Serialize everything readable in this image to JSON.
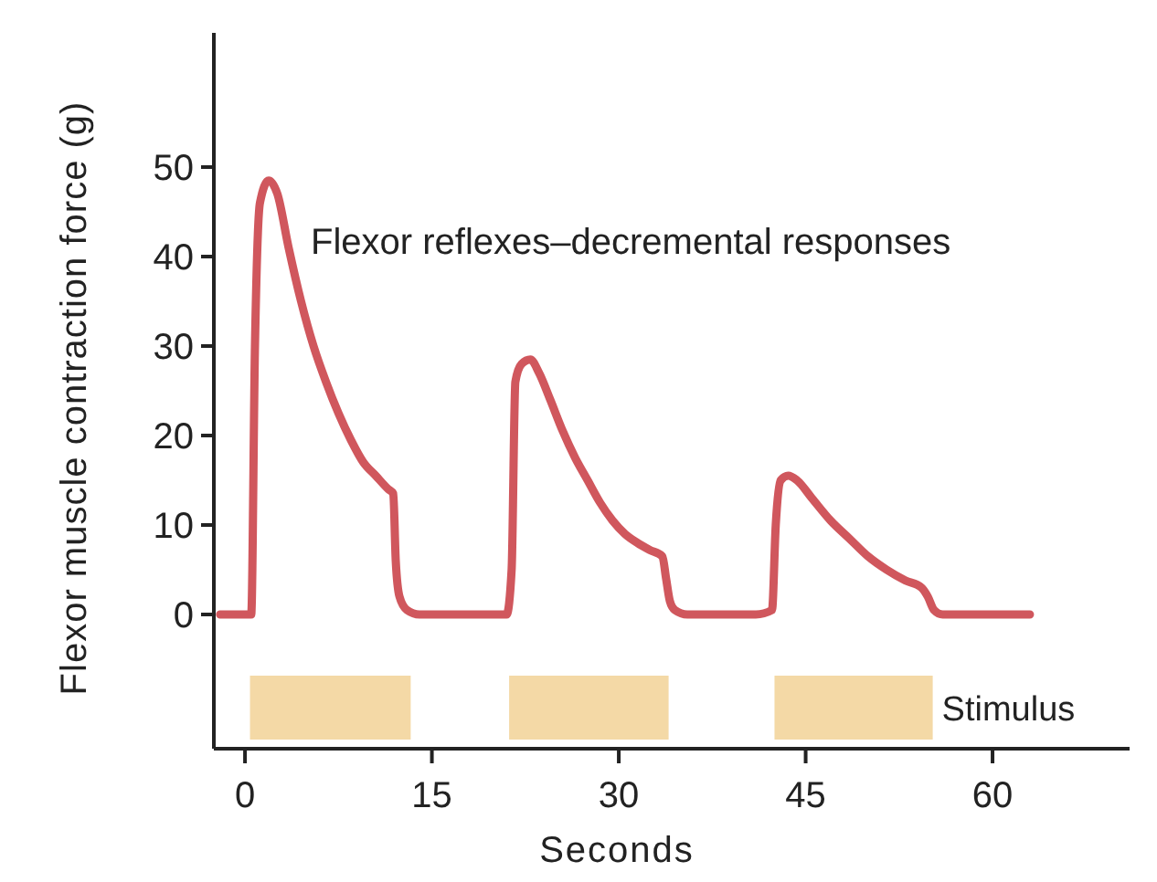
{
  "chart_data": {
    "type": "line",
    "xlabel": "Seconds",
    "ylabel": "Flexor muscle contraction force (g)",
    "annotations": [
      "Flexor reflexes–decremental responses"
    ],
    "xlim": [
      -2.5,
      71
    ],
    "ylim": [
      -15,
      65
    ],
    "xticks": [
      0,
      15,
      30,
      45,
      60
    ],
    "yticks": [
      0,
      10,
      20,
      30,
      40,
      50
    ],
    "grid": false,
    "marker": "none",
    "line_style": "solid",
    "series": [
      {
        "color": "#d0575d",
        "x": [
          -2,
          0.5,
          0.8,
          1.2,
          1.9,
          2.6,
          3.5,
          4.5,
          5.5,
          6.5,
          7.5,
          8.5,
          9.5,
          10.5,
          11.5,
          11.9,
          12.1,
          12.4,
          13,
          14,
          16,
          18,
          20,
          21,
          21.4,
          21.7,
          22.2,
          22.9,
          23.6,
          24.5,
          25.5,
          26.5,
          27.5,
          28.5,
          29.5,
          30.5,
          31.5,
          32.5,
          33.5,
          33.8,
          34.1,
          34.5,
          35.5,
          38,
          41,
          42.3,
          42.6,
          43,
          43.6,
          44.3,
          45.5,
          47,
          48.5,
          50,
          51.5,
          53,
          54.3,
          54.8,
          55.3,
          56,
          58,
          60,
          63
        ],
        "values": [
          0,
          0,
          30,
          46,
          48.5,
          47,
          41,
          35,
          30,
          26,
          22.5,
          19.5,
          17,
          15.5,
          14,
          13.5,
          6,
          2,
          0.5,
          0,
          0,
          0,
          0,
          0,
          5,
          26,
          28,
          28.5,
          27,
          24,
          20.5,
          17.5,
          15,
          12.5,
          10.5,
          9,
          8,
          7.2,
          6.5,
          4,
          1.5,
          0.5,
          0,
          0,
          0,
          0.5,
          10,
          15,
          15.5,
          15,
          13,
          10.5,
          8.5,
          6.5,
          5,
          3.8,
          3,
          2,
          0.5,
          0,
          0,
          0,
          0
        ]
      }
    ],
    "bands": [
      {
        "axis": "x",
        "from": 0.4,
        "to": 13.3,
        "color": "#f4d9a6"
      },
      {
        "axis": "x",
        "from": 21.2,
        "to": 34.0,
        "color": "#f4d9a6"
      },
      {
        "axis": "x",
        "from": 42.5,
        "to": 55.2,
        "color": "#f4d9a6",
        "label": "Stimulus"
      }
    ]
  }
}
